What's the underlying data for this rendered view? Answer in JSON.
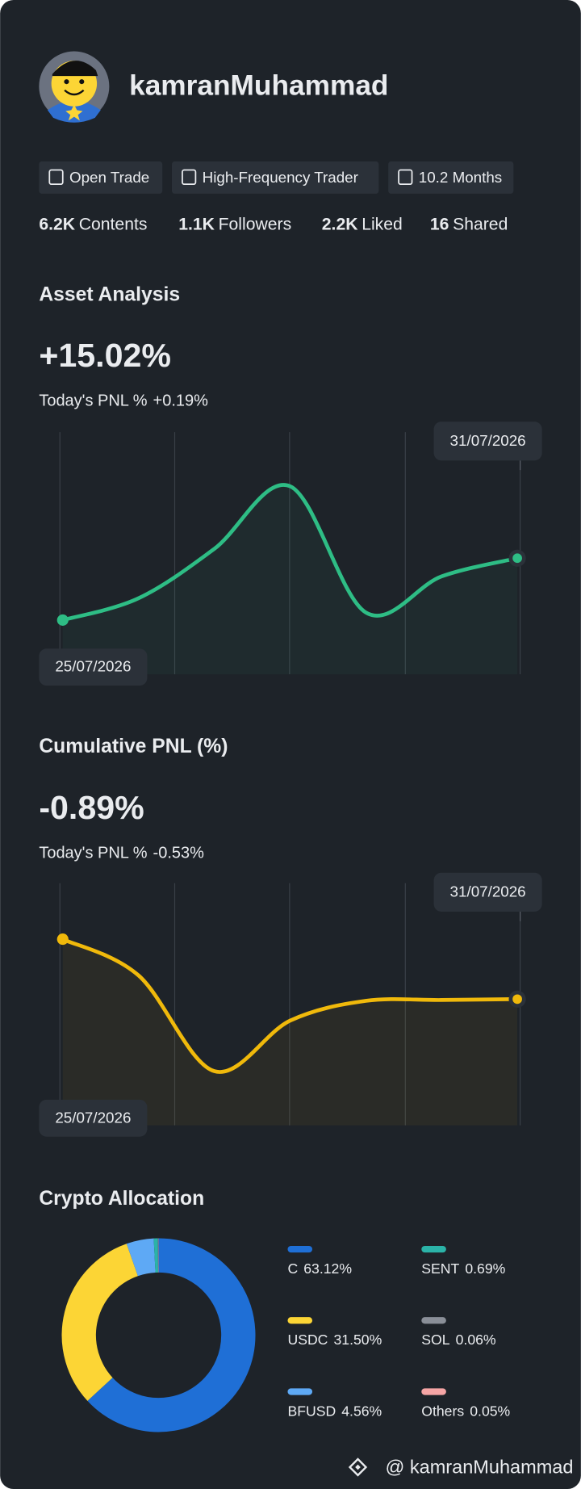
{
  "profile": {
    "username": "kamranMuhammad"
  },
  "badges": [
    "Open Trade",
    "High-Frequency Trader",
    "10.2 Months"
  ],
  "stats": [
    {
      "value": "6.2K",
      "label": "Contents"
    },
    {
      "value": "1.1K",
      "label": "Followers"
    },
    {
      "value": "2.2K",
      "label": "Liked"
    },
    {
      "value": "16",
      "label": "Shared"
    }
  ],
  "chart_data": [
    {
      "type": "line",
      "title": "Asset Analysis",
      "headline": "+15.02%",
      "today_label": "Today's PNL %",
      "today_value": "+0.19%",
      "categories": [
        "25/07/2026",
        null,
        null,
        null,
        null,
        null,
        "31/07/2026"
      ],
      "values": [
        8.5,
        10.8,
        16.0,
        22.6,
        9.3,
        13.1,
        15.02
      ],
      "color": "#2ebd85"
    },
    {
      "type": "line",
      "title": "Cumulative PNL (%)",
      "headline": "-0.89%",
      "today_label": "Today's PNL %",
      "today_value": "-0.53%",
      "categories": [
        "25/07/2026",
        null,
        null,
        null,
        null,
        null,
        "31/07/2026"
      ],
      "values": [
        0.5,
        -0.34,
        -2.56,
        -1.39,
        -0.93,
        -0.91,
        -0.89
      ],
      "color": "#f0b90b"
    },
    {
      "type": "pie",
      "title": "Crypto Allocation",
      "categories": [
        "C",
        "USDC",
        "BFUSD",
        "SENT",
        "SOL",
        "Others"
      ],
      "values": [
        63.12,
        31.5,
        4.56,
        0.69,
        0.06,
        0.05
      ],
      "value_labels": [
        "63.12%",
        "31.50%",
        "4.56%",
        "0.69%",
        "0.06%",
        "0.05%"
      ],
      "colors": [
        "#1f6fd6",
        "#fcd535",
        "#5ea9f5",
        "#2bb3a8",
        "#8a8f98",
        "#f6a5a5"
      ]
    }
  ],
  "footer": "@ kamranMuhammad"
}
